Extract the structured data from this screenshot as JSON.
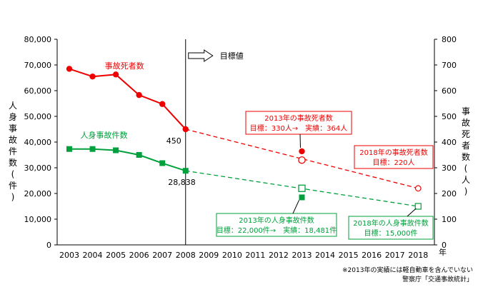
{
  "chart_data": {
    "type": "line",
    "categories": [
      "2003",
      "2004",
      "2005",
      "2006",
      "2007",
      "2008",
      "2009",
      "2010",
      "2011",
      "2012",
      "2013",
      "2014",
      "2015",
      "2016",
      "2017",
      "2018"
    ],
    "x_unit": "年",
    "left_axis": {
      "label_chars": [
        "人",
        "身",
        "事",
        "故",
        "件",
        "数",
        "(",
        "件",
        ")"
      ],
      "ylim": [
        0,
        80000
      ],
      "ticks": [
        "0",
        "10,000",
        "20,000",
        "30,000",
        "40,000",
        "50,000",
        "60,000",
        "70,000",
        "80,000"
      ]
    },
    "right_axis": {
      "label_chars": [
        "事",
        "故",
        "死",
        "者",
        "数",
        "(",
        "人",
        ")"
      ],
      "ylim": [
        0,
        800
      ],
      "ticks": [
        "0",
        "100",
        "200",
        "300",
        "400",
        "500",
        "600",
        "700",
        "800"
      ]
    },
    "series": [
      {
        "name": "事故死者数",
        "axis": "right",
        "color": "#ee0000",
        "x": [
          2003,
          2004,
          2005,
          2006,
          2007,
          2008
        ],
        "values": [
          685,
          655,
          663,
          583,
          548,
          450
        ],
        "end_label": "450"
      },
      {
        "name": "人身事故件数",
        "axis": "left",
        "color": "#00a03c",
        "x": [
          2003,
          2004,
          2005,
          2006,
          2007,
          2008
        ],
        "values": [
          37300,
          37300,
          36800,
          35000,
          31800,
          28838
        ],
        "end_label": "28,838"
      }
    ],
    "targets": [
      {
        "axis": "right",
        "color": "#ee0000",
        "from": [
          2008,
          450
        ],
        "target_2013": 330,
        "actual_2013": 364,
        "target_2018": 220,
        "callout_2013": [
          "2013年の事故死者数",
          "目標：330人→　実績：364人"
        ],
        "callout_2018": [
          "2018年の事故死者数",
          "目標：220人"
        ]
      },
      {
        "axis": "left",
        "color": "#00a03c",
        "from": [
          2008,
          28838
        ],
        "target_2013": 22000,
        "actual_2013": 18481,
        "target_2018": 15000,
        "callout_2013": [
          "2013年の人身事故件数",
          "目標：22,000件→　実績：18,481件"
        ],
        "callout_2018": [
          "2018年の人身事故件数",
          "目標：15,000件"
        ]
      }
    ],
    "divider_year": 2008,
    "target_arrow_label": "目標値"
  },
  "footnotes": {
    "line1": "※2013年の実績には軽自動車を含んでいない",
    "line2": "警察庁「交通事故統計」"
  },
  "colors": {
    "red": "#ee0000",
    "green": "#00a03c",
    "axis": "#000000"
  }
}
